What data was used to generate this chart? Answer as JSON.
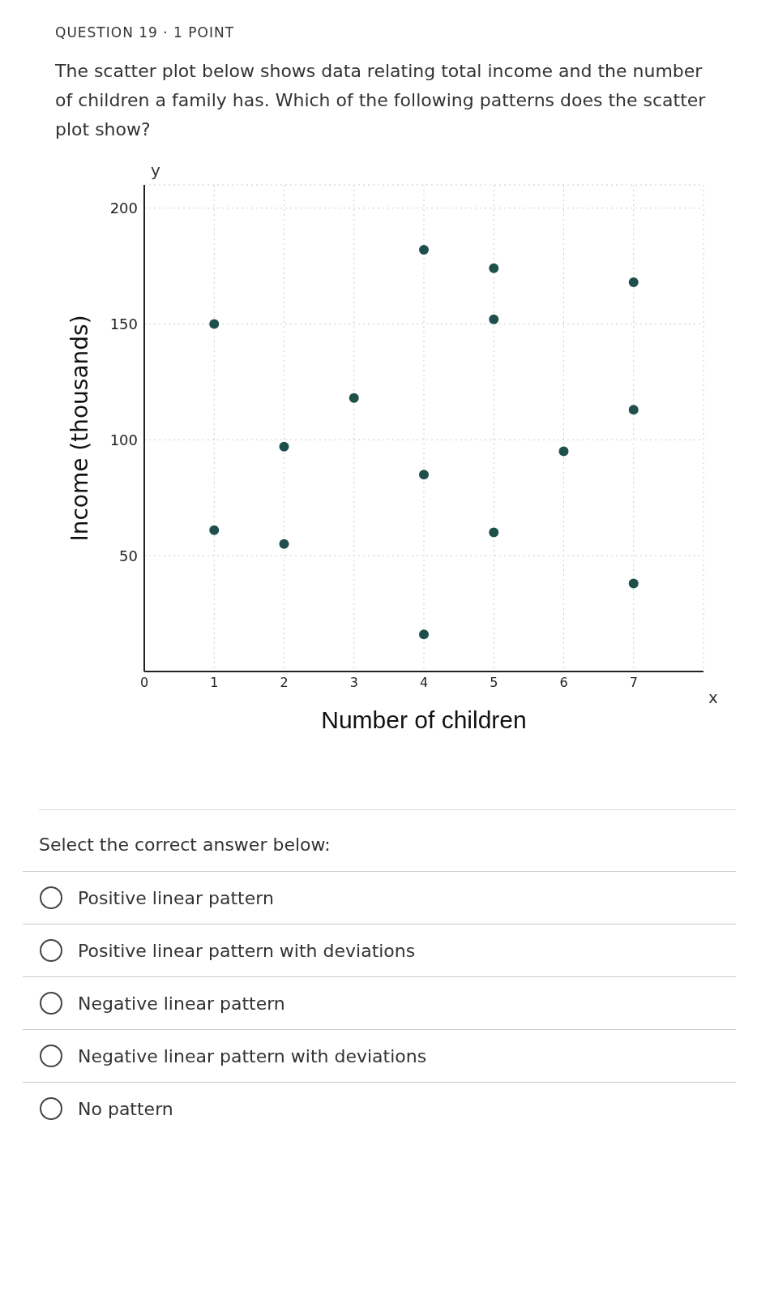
{
  "chart_data": {
    "type": "scatter",
    "title": "QUESTION 19 · 1 POINT",
    "subtitle": "The scatter plot below shows data relating total income and the number of children a family has. Which of the following patterns does the scatter plot show?",
    "xlabel": "Number of children",
    "ylabel": "Income (thousands)",
    "x": [
      1,
      1,
      2,
      2,
      3,
      4,
      4,
      4,
      5,
      5,
      5,
      6,
      7,
      7,
      7
    ],
    "values": [
      150,
      61,
      97,
      55,
      118,
      182,
      85,
      16,
      174,
      152,
      60,
      95,
      168,
      113,
      38
    ],
    "color": "#1f4f4b",
    "marker": "circle",
    "xlim": [
      0,
      8
    ],
    "xticks": [
      {
        "value": 0,
        "label": "0"
      },
      1,
      2,
      3,
      4,
      5,
      6,
      7
    ],
    "ylim": [
      0,
      210
    ],
    "yticks": [
      {
        "value": 0,
        "label": null
      },
      50,
      100,
      150,
      200
    ],
    "grid": true,
    "annotations": [
      "y",
      "x",
      "Select the correct answer below:",
      "Positive linear pattern",
      "Positive linear pattern with deviations",
      "Negative linear pattern",
      "Negative linear pattern with deviations",
      "No pattern"
    ]
  }
}
